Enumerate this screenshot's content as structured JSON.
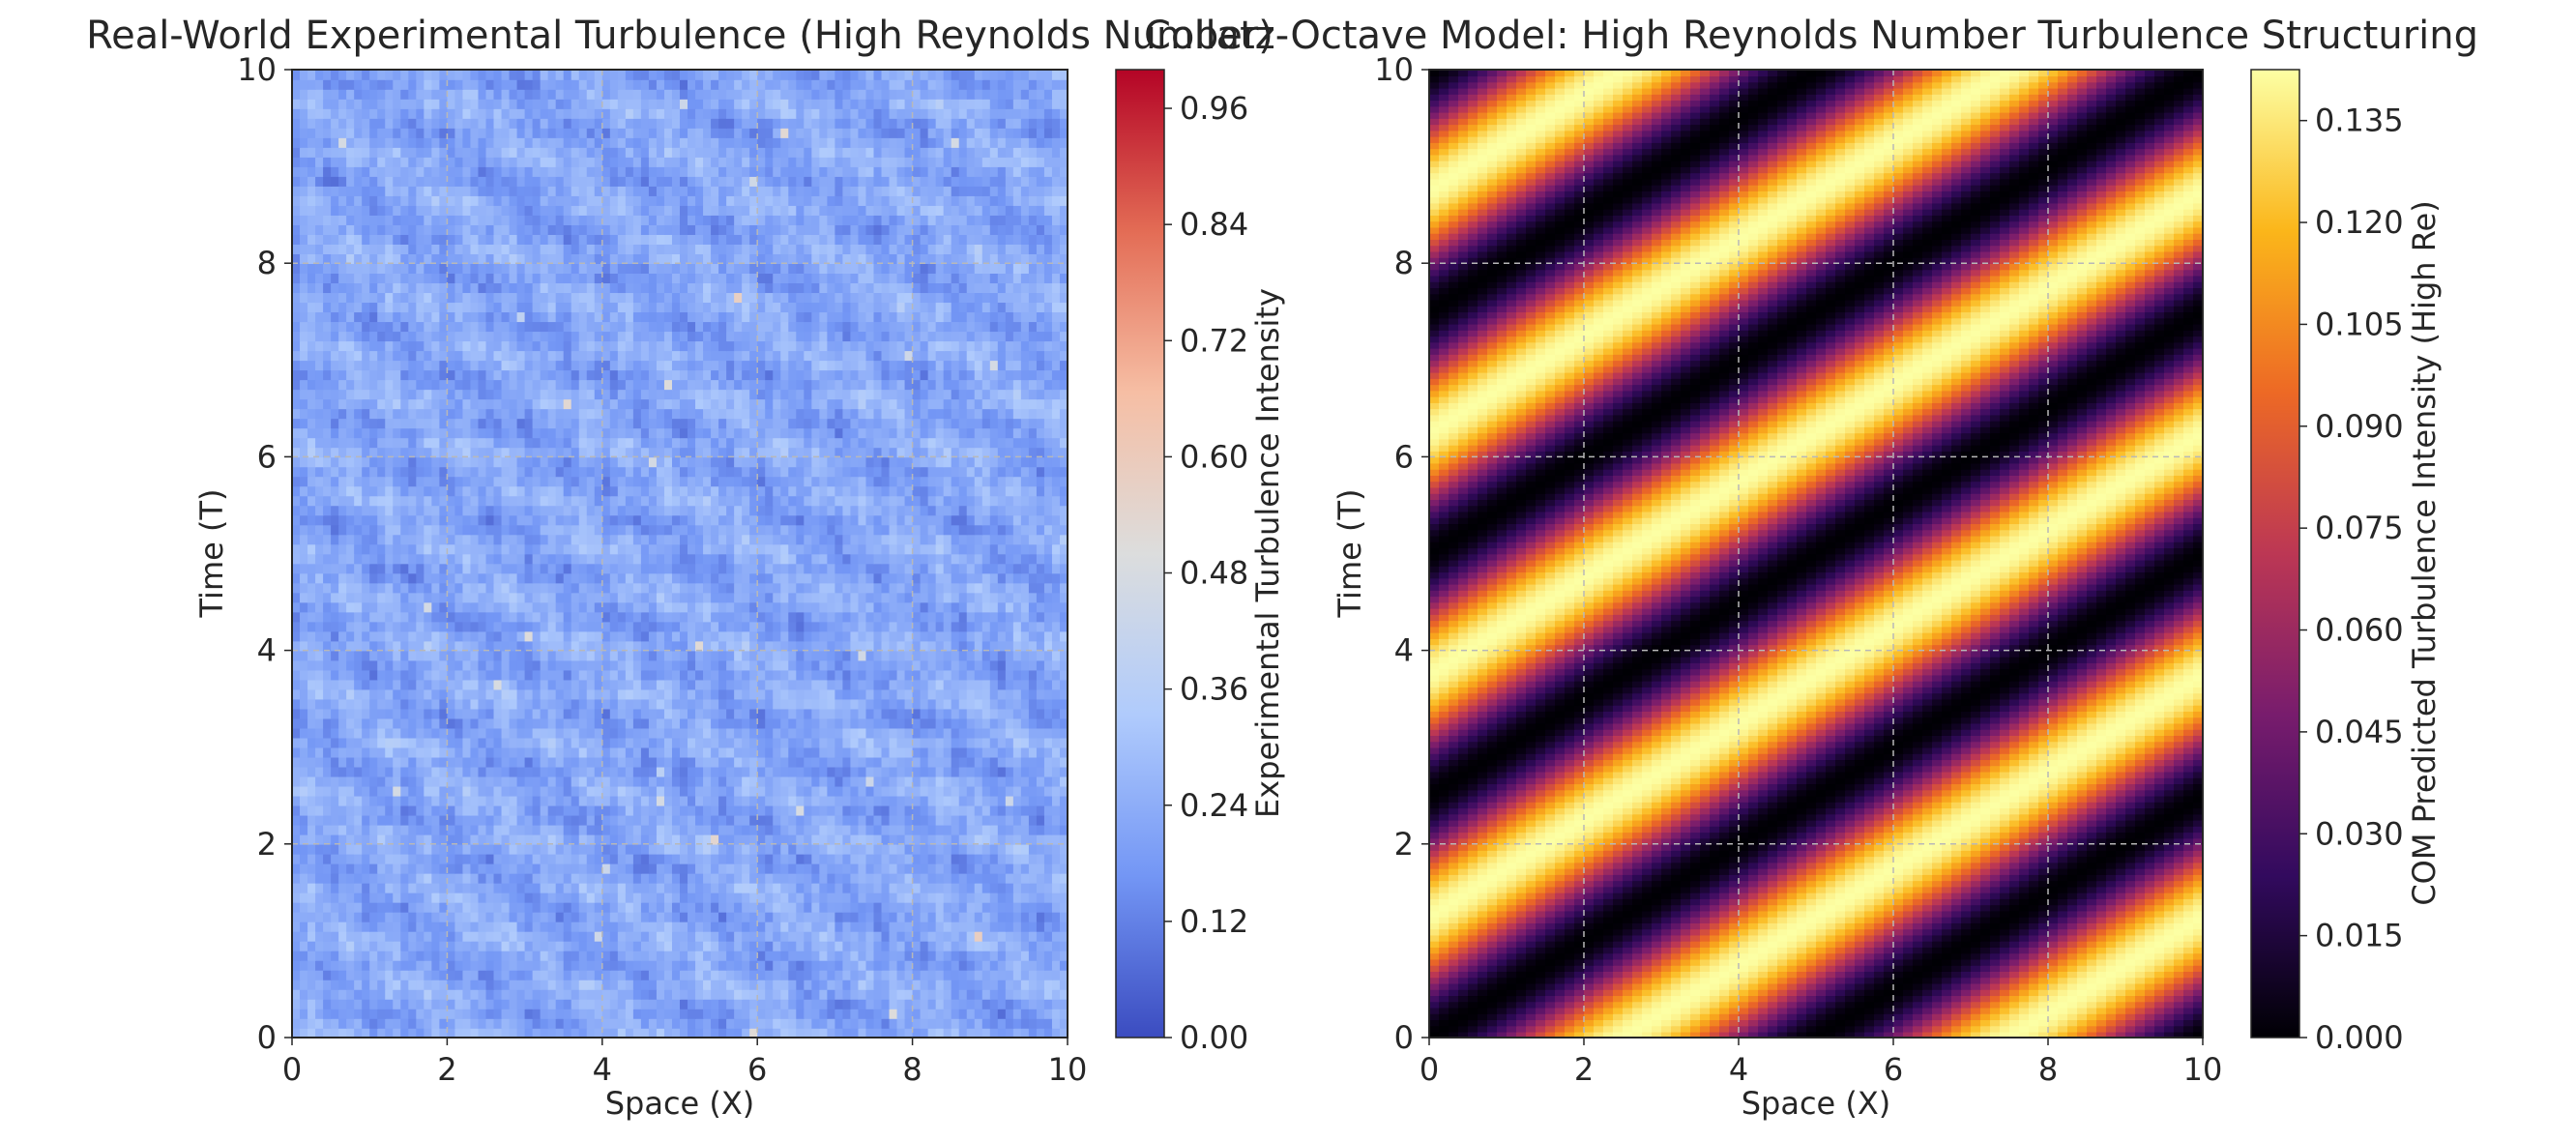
{
  "chart_data": [
    {
      "type": "heatmap",
      "title": "Real-World Experimental Turbulence (High Reynolds Number)",
      "xlabel": "Space (X)",
      "ylabel": "Time (T)",
      "xlim": [
        0,
        10
      ],
      "ylim": [
        0,
        10
      ],
      "xticks": [
        "0",
        "2",
        "4",
        "6",
        "8",
        "10"
      ],
      "yticks": [
        "0",
        "2",
        "4",
        "6",
        "8",
        "10"
      ],
      "grid": true,
      "colormap": "coolwarm",
      "colormap_colors": [
        "#3b4cc0",
        "#7396f5",
        "#b0cbfc",
        "#dcdddd",
        "#f6bea4",
        "#e36c55",
        "#b40426"
      ],
      "value_range": [
        0,
        1.0
      ],
      "typical_value_range": [
        0.12,
        0.35
      ],
      "pattern": "noisy diagonal checkerboard texture",
      "colorbar": {
        "label": "Experimental Turbulence Intensity",
        "ticks": [
          "0.00",
          "0.12",
          "0.24",
          "0.36",
          "0.48",
          "0.60",
          "0.72",
          "0.84",
          "0.96"
        ]
      }
    },
    {
      "type": "heatmap",
      "title": "Collatz-Octave Model: High Reynolds Number Turbulence Structuring",
      "xlabel": "Space (X)",
      "ylabel": "Time (T)",
      "xlim": [
        0,
        10
      ],
      "ylim": [
        0,
        10
      ],
      "xticks": [
        "0",
        "2",
        "4",
        "6",
        "8",
        "10"
      ],
      "yticks": [
        "0",
        "2",
        "4",
        "6",
        "8",
        "10"
      ],
      "grid": true,
      "colormap": "inferno",
      "colormap_colors": [
        "#000004",
        "#320a5e",
        "#781c6d",
        "#bc3754",
        "#ed6925",
        "#fbb61a",
        "#fcffa4"
      ],
      "value_range": [
        0,
        0.1425
      ],
      "pattern": "diagonal bands sin^2, band period along T ≈ 2.5, drift ≈ 0.5 T per unit X",
      "colorbar": {
        "label": "COM Predicted Turbulence Intensity (High Re)",
        "ticks": [
          "0.000",
          "0.015",
          "0.030",
          "0.045",
          "0.060",
          "0.075",
          "0.090",
          "0.105",
          "0.120",
          "0.135"
        ]
      }
    }
  ]
}
